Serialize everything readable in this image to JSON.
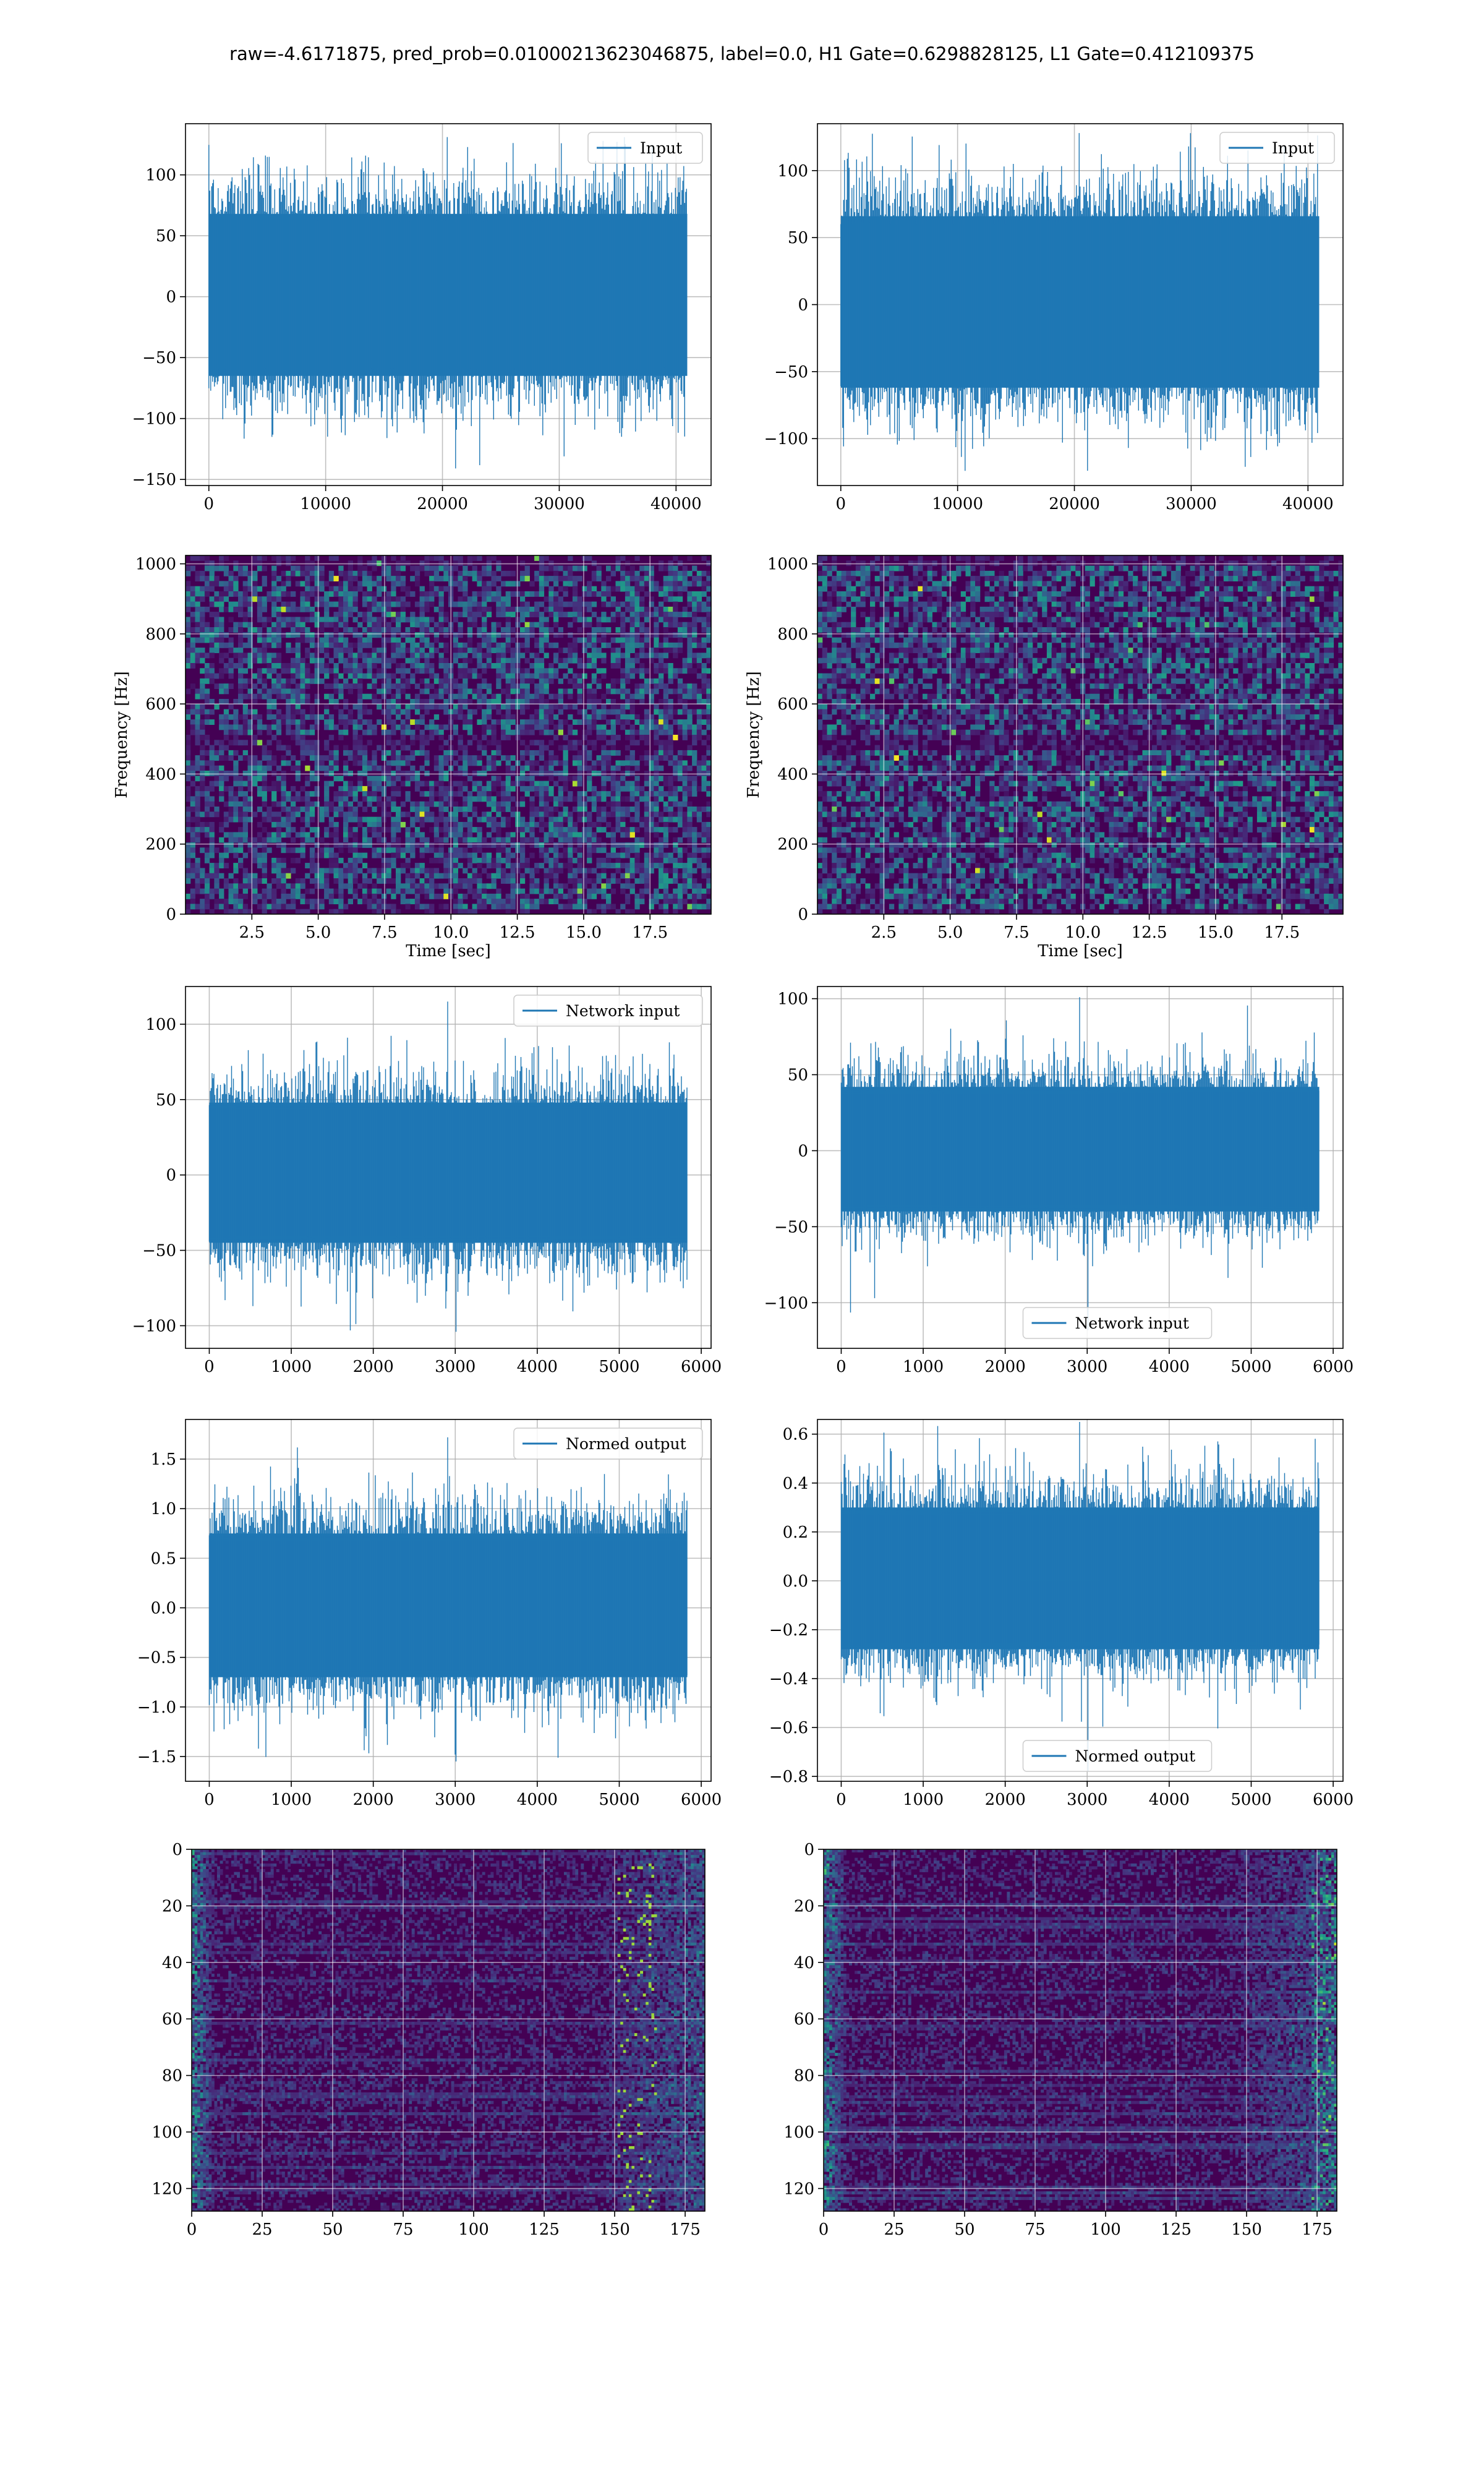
{
  "figure": {
    "suptitle": "raw=-4.6171875, pred_prob=0.01000213623046875, label=0.0, H1 Gate=0.6298828125, L1 Gate=0.412109375"
  },
  "colors": {
    "line": "#1f77b4",
    "grid": "#b0b0b0",
    "viridis_dark": "#440154",
    "viridis_mid": "#21918c",
    "viridis_bright": "#fde725"
  },
  "chart_data": [
    {
      "id": "row1-left",
      "type": "line",
      "legend": "Input",
      "legend_loc": "upper right",
      "xlim": [
        -2000,
        43000
      ],
      "ylim": [
        -155,
        142
      ],
      "xticks": [
        0,
        10000,
        20000,
        30000,
        40000
      ],
      "yticks": [
        -150,
        -100,
        -50,
        0,
        50,
        100
      ],
      "series": [
        {
          "x_range": [
            0,
            40960
          ],
          "typical_envelope": [
            -65,
            68
          ],
          "max": 131,
          "min": -141
        }
      ],
      "grid": true
    },
    {
      "id": "row1-right",
      "type": "line",
      "legend": "Input",
      "legend_loc": "upper right",
      "xlim": [
        -2000,
        43000
      ],
      "ylim": [
        -135,
        135
      ],
      "xticks": [
        0,
        10000,
        20000,
        30000,
        40000
      ],
      "yticks": [
        -100,
        -50,
        0,
        50,
        100
      ],
      "series": [
        {
          "x_range": [
            0,
            40960
          ],
          "typical_envelope": [
            -62,
            66
          ],
          "max": 128,
          "min": -124
        }
      ],
      "grid": true
    },
    {
      "id": "row2-left",
      "type": "heatmap",
      "xlabel": "Time [sec]",
      "ylabel": "Frequency [Hz]",
      "xlim": [
        0,
        19.8
      ],
      "ylim": [
        0,
        1024
      ],
      "xticks": [
        2.5,
        5.0,
        7.5,
        10.0,
        12.5,
        15.0,
        17.5
      ],
      "yticks": [
        0,
        200,
        400,
        600,
        800,
        1000
      ],
      "colormap": "viridis",
      "grid": true
    },
    {
      "id": "row2-right",
      "type": "heatmap",
      "xlabel": "Time [sec]",
      "ylabel": "Frequency [Hz]",
      "xlim": [
        0,
        19.8
      ],
      "ylim": [
        0,
        1024
      ],
      "xticks": [
        2.5,
        5.0,
        7.5,
        10.0,
        12.5,
        15.0,
        17.5
      ],
      "yticks": [
        0,
        200,
        400,
        600,
        800,
        1000
      ],
      "colormap": "viridis",
      "grid": true
    },
    {
      "id": "row3-left",
      "type": "line",
      "legend": "Network input",
      "legend_loc": "upper right",
      "xlim": [
        -290,
        6120
      ],
      "ylim": [
        -115,
        125
      ],
      "xticks": [
        0,
        1000,
        2000,
        3000,
        4000,
        5000,
        6000
      ],
      "yticks": [
        -100,
        -50,
        0,
        50,
        100
      ],
      "series": [
        {
          "x_range": [
            0,
            5830
          ],
          "typical_envelope": [
            -45,
            48
          ],
          "max": 115,
          "min": -104
        }
      ],
      "grid": true
    },
    {
      "id": "row3-right",
      "type": "line",
      "legend": "Network input",
      "legend_loc": "lower center",
      "xlim": [
        -290,
        6120
      ],
      "ylim": [
        -130,
        108
      ],
      "xticks": [
        0,
        1000,
        2000,
        3000,
        4000,
        5000,
        6000
      ],
      "yticks": [
        -100,
        -50,
        0,
        50,
        100
      ],
      "series": [
        {
          "x_range": [
            0,
            5830
          ],
          "typical_envelope": [
            -40,
            42
          ],
          "max": 101,
          "min": -118
        }
      ],
      "grid": true
    },
    {
      "id": "row4-left",
      "type": "line",
      "legend": "Normed output",
      "legend_loc": "upper right",
      "xlim": [
        -290,
        6120
      ],
      "ylim": [
        -1.75,
        1.9
      ],
      "xticks": [
        0,
        1000,
        2000,
        3000,
        4000,
        5000,
        6000
      ],
      "yticks": [
        -1.5,
        -1.0,
        -0.5,
        0.0,
        0.5,
        1.0,
        1.5
      ],
      "series": [
        {
          "x_range": [
            0,
            5830
          ],
          "typical_envelope": [
            -0.7,
            0.75
          ],
          "max": 1.72,
          "min": -1.55
        }
      ],
      "grid": true
    },
    {
      "id": "row4-right",
      "type": "line",
      "legend": "Normed output",
      "legend_loc": "lower center",
      "xlim": [
        -290,
        6120
      ],
      "ylim": [
        -0.82,
        0.66
      ],
      "xticks": [
        0,
        1000,
        2000,
        3000,
        4000,
        5000,
        6000
      ],
      "yticks": [
        -0.8,
        -0.6,
        -0.4,
        -0.2,
        0.0,
        0.2,
        0.4,
        0.6
      ],
      "series": [
        {
          "x_range": [
            0,
            5830
          ],
          "typical_envelope": [
            -0.28,
            0.3
          ],
          "max": 0.65,
          "min": -0.78
        }
      ],
      "grid": true
    },
    {
      "id": "row5-left",
      "type": "heatmap",
      "xlim": [
        0,
        182
      ],
      "ylim": [
        128,
        0
      ],
      "xticks": [
        0,
        25,
        50,
        75,
        100,
        125,
        150,
        175
      ],
      "yticks": [
        0,
        20,
        40,
        60,
        80,
        100,
        120
      ],
      "colormap": "viridis",
      "grid": true
    },
    {
      "id": "row5-right",
      "type": "heatmap",
      "xlim": [
        0,
        182
      ],
      "ylim": [
        128,
        0
      ],
      "xticks": [
        0,
        25,
        50,
        75,
        100,
        125,
        150,
        175
      ],
      "yticks": [
        0,
        20,
        40,
        60,
        80,
        100,
        120
      ],
      "colormap": "viridis",
      "grid": true
    }
  ]
}
